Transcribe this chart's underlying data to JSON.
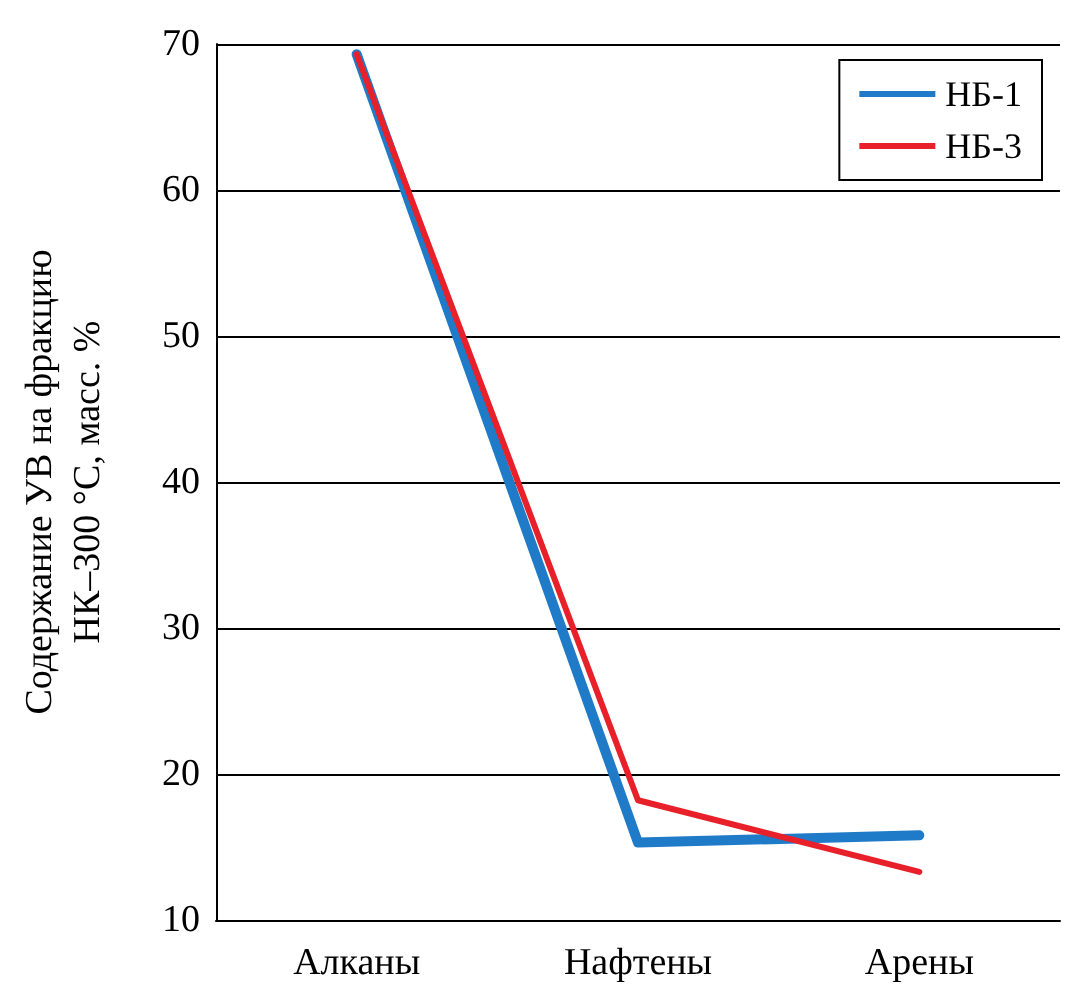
{
  "chart_data": {
    "type": "line",
    "ylabel": "Содержание УВ на фракцию\nНК–300 °С, масс. %",
    "categories": [
      "Алканы",
      "Нафтены",
      "Арены"
    ],
    "series": [
      {
        "name": "НБ-1",
        "color": "#1f7ac8",
        "values": [
          69.3,
          15.3,
          15.8
        ]
      },
      {
        "name": "НБ-3",
        "color": "#e8202a",
        "values": [
          69.3,
          18.2,
          13.3
        ]
      }
    ],
    "ylim": [
      10,
      70
    ],
    "yticks": [
      10,
      20,
      30,
      40,
      50,
      60,
      70
    ],
    "grid": "y",
    "legend": "top right",
    "marker": "none",
    "line_style": "solid"
  }
}
